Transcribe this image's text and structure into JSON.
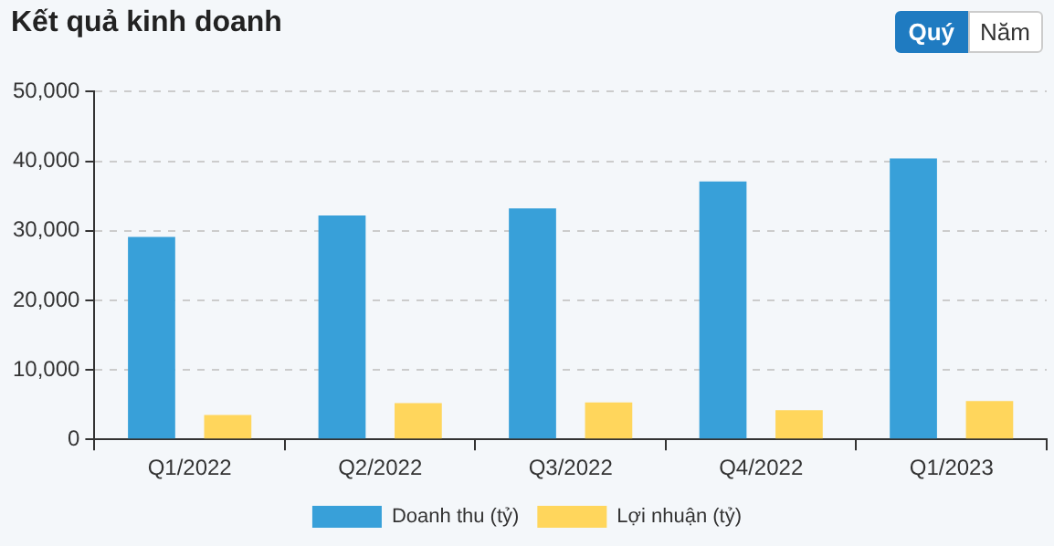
{
  "chart_data": {
    "type": "bar",
    "title": "Kết quả kinh doanh",
    "annotations": [
      "Quý",
      "Năm"
    ],
    "categories": [
      "Q1/2022",
      "Q2/2022",
      "Q3/2022",
      "Q4/2022",
      "Q1/2023"
    ],
    "series": [
      {
        "name": "Doanh thu (tỷ)",
        "color": "#38a0d9",
        "values": [
          29100,
          32200,
          33200,
          37100,
          40400
        ]
      },
      {
        "name": "Lợi nhuận (tỷ)",
        "color": "#ffd65c",
        "values": [
          3500,
          5200,
          5300,
          4200,
          5500
        ]
      }
    ],
    "ylim": [
      0,
      50000
    ],
    "yticks": [
      0,
      {
        "value": 10000,
        "label": "10,000"
      },
      {
        "value": 20000,
        "label": "20,000"
      },
      {
        "value": 30000,
        "label": "30,000"
      },
      {
        "value": 40000,
        "label": "40,000"
      },
      {
        "value": 50000,
        "label": "50,000"
      }
    ],
    "grid": "y",
    "legend": "bottom"
  }
}
